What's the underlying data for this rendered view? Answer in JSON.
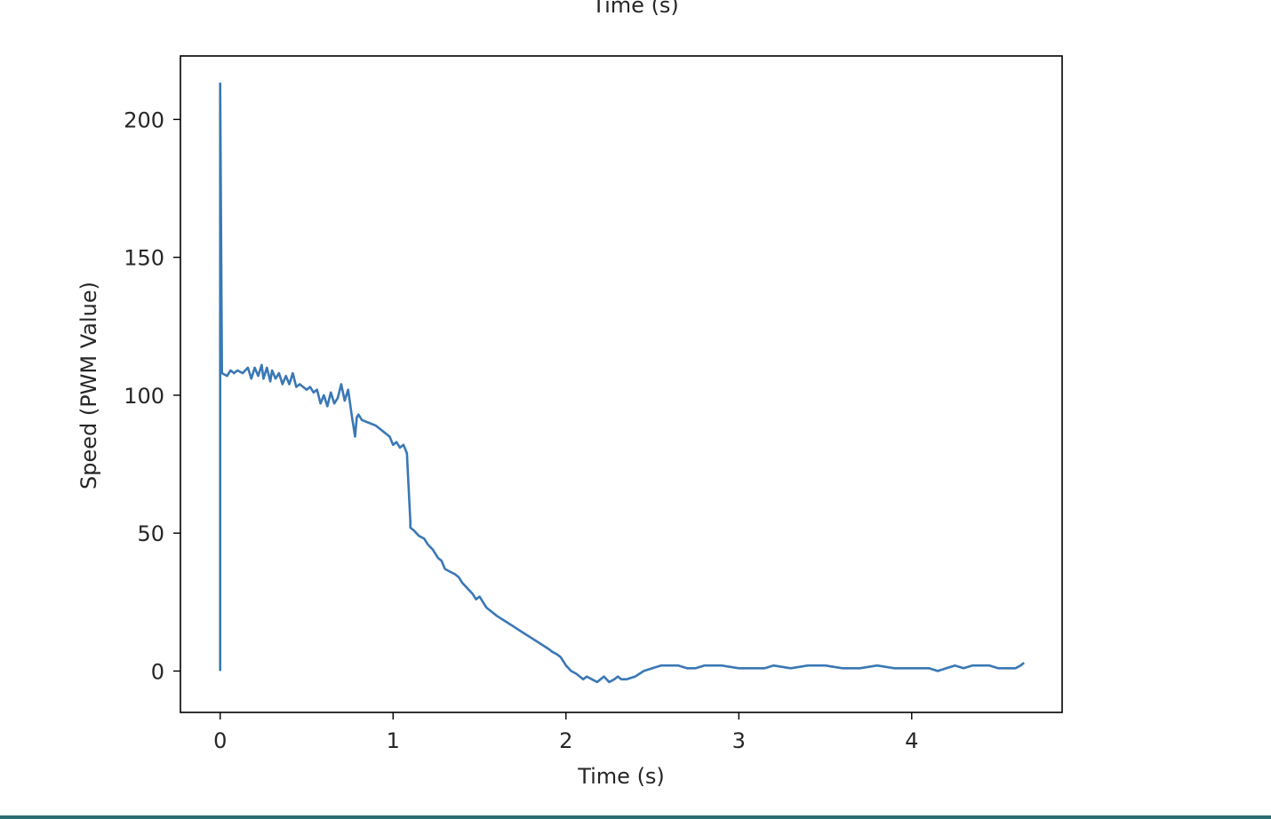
{
  "chart_data": {
    "type": "line",
    "top_clipped_text": "Time (s)",
    "xlabel": "Time (s)",
    "ylabel": "Speed (PWM Value)",
    "xlim": [
      -0.23,
      4.87
    ],
    "ylim": [
      -15,
      223
    ],
    "xticks": [
      0,
      1,
      2,
      3,
      4
    ],
    "yticks": [
      0,
      50,
      100,
      150,
      200
    ],
    "line_color": "#3a78b5",
    "grid": false,
    "series": [
      {
        "x": [
          0.0,
          0.0,
          0.01,
          0.04,
          0.06,
          0.08,
          0.1,
          0.13,
          0.16,
          0.18,
          0.2,
          0.22,
          0.24,
          0.25,
          0.27,
          0.29,
          0.3,
          0.32,
          0.34,
          0.36,
          0.38,
          0.4,
          0.42,
          0.44,
          0.46,
          0.48,
          0.5,
          0.52,
          0.54,
          0.56,
          0.58,
          0.6,
          0.62,
          0.64,
          0.66,
          0.68,
          0.7,
          0.72,
          0.74,
          0.76,
          0.78,
          0.79,
          0.8,
          0.82,
          0.86,
          0.9,
          0.94,
          0.98,
          1.0,
          1.02,
          1.04,
          1.06,
          1.08,
          1.1,
          1.1,
          1.12,
          1.15,
          1.18,
          1.2,
          1.23,
          1.26,
          1.28,
          1.3,
          1.33,
          1.36,
          1.38,
          1.4,
          1.43,
          1.46,
          1.48,
          1.5,
          1.52,
          1.54,
          1.56,
          1.6,
          1.65,
          1.7,
          1.75,
          1.8,
          1.85,
          1.9,
          1.92,
          1.95,
          1.97,
          2.0,
          2.03,
          2.06,
          2.08,
          2.1,
          2.12,
          2.15,
          2.18,
          2.2,
          2.22,
          2.25,
          2.28,
          2.3,
          2.32,
          2.35,
          2.4,
          2.45,
          2.5,
          2.55,
          2.6,
          2.65,
          2.7,
          2.75,
          2.8,
          2.9,
          3.0,
          3.1,
          3.15,
          3.2,
          3.3,
          3.4,
          3.5,
          3.6,
          3.7,
          3.8,
          3.9,
          4.0,
          4.05,
          4.1,
          4.15,
          4.2,
          4.25,
          4.3,
          4.35,
          4.4,
          4.45,
          4.5,
          4.55,
          4.6,
          4.63,
          4.65
        ],
        "y": [
          0,
          213,
          108,
          107,
          109,
          108,
          109,
          108,
          110,
          106,
          110,
          107,
          111,
          106,
          110,
          105,
          109,
          106,
          108,
          104,
          107,
          104,
          108,
          103,
          104,
          103,
          102,
          103,
          101,
          102,
          97,
          100,
          96,
          101,
          97,
          99,
          104,
          98,
          102,
          93,
          85,
          92,
          93,
          91,
          90,
          89,
          87,
          85,
          82,
          83,
          81,
          82,
          79,
          54,
          52,
          51,
          49,
          48,
          46,
          44,
          41,
          40,
          37,
          36,
          35,
          34,
          32,
          30,
          28,
          26,
          27,
          25,
          23,
          22,
          20,
          18,
          16,
          14,
          12,
          10,
          8,
          7,
          6,
          5,
          2,
          0,
          -1,
          -2,
          -3,
          -2,
          -3,
          -4,
          -3,
          -2,
          -4,
          -3,
          -2,
          -3,
          -3,
          -2,
          0,
          1,
          2,
          2,
          2,
          1,
          1,
          2,
          2,
          1,
          1,
          1,
          2,
          1,
          2,
          2,
          1,
          1,
          2,
          1,
          1,
          1,
          1,
          0,
          1,
          2,
          1,
          2,
          2,
          2,
          1,
          1,
          1,
          2,
          3
        ]
      }
    ]
  }
}
